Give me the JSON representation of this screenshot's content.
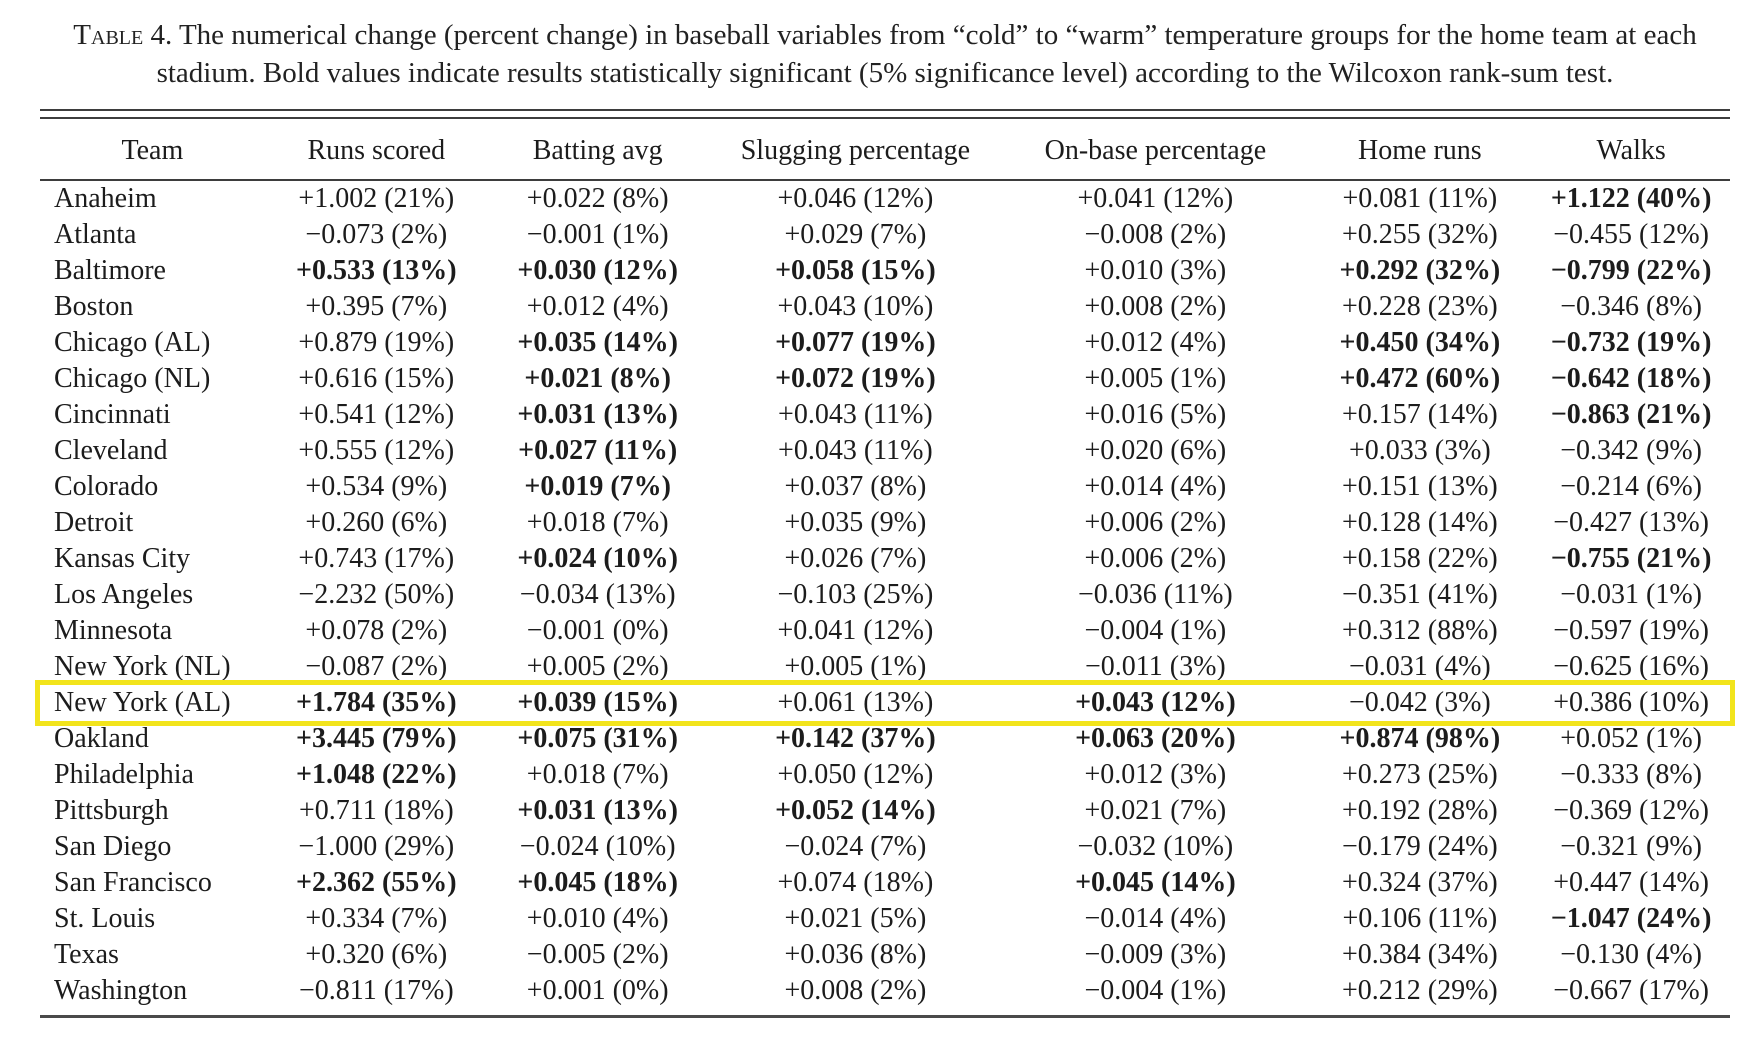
{
  "caption": {
    "label": "Table 4.",
    "text": "The numerical change (percent change) in baseball variables from “cold” to “warm” temperature groups for the home team at each stadium. Bold values indicate results statistically significant (5% significance level) according to the Wilcoxon rank-sum test."
  },
  "highlight": {
    "color": "#f2e41c",
    "row": "New York (AL)"
  },
  "table": {
    "columns": [
      "Team",
      "Runs scored",
      "Batting avg",
      "Slugging percentage",
      "On-base percentage",
      "Home runs",
      "Walks"
    ],
    "rows": [
      {
        "team": "Anaheim",
        "highlighted": false,
        "cells": [
          {
            "text": "+1.002 (21%)",
            "bold": false
          },
          {
            "text": "+0.022 (8%)",
            "bold": false
          },
          {
            "text": "+0.046 (12%)",
            "bold": false
          },
          {
            "text": "+0.041 (12%)",
            "bold": false
          },
          {
            "text": "+0.081 (11%)",
            "bold": false
          },
          {
            "text": "+1.122 (40%)",
            "bold": true
          }
        ]
      },
      {
        "team": "Atlanta",
        "highlighted": false,
        "cells": [
          {
            "text": "−0.073 (2%)",
            "bold": false
          },
          {
            "text": "−0.001 (1%)",
            "bold": false
          },
          {
            "text": "+0.029 (7%)",
            "bold": false
          },
          {
            "text": "−0.008 (2%)",
            "bold": false
          },
          {
            "text": "+0.255 (32%)",
            "bold": false
          },
          {
            "text": "−0.455 (12%)",
            "bold": false
          }
        ]
      },
      {
        "team": "Baltimore",
        "highlighted": false,
        "cells": [
          {
            "text": "+0.533 (13%)",
            "bold": true
          },
          {
            "text": "+0.030 (12%)",
            "bold": true
          },
          {
            "text": "+0.058 (15%)",
            "bold": true
          },
          {
            "text": "+0.010 (3%)",
            "bold": false
          },
          {
            "text": "+0.292 (32%)",
            "bold": true
          },
          {
            "text": "−0.799 (22%)",
            "bold": true
          }
        ]
      },
      {
        "team": "Boston",
        "highlighted": false,
        "cells": [
          {
            "text": "+0.395 (7%)",
            "bold": false
          },
          {
            "text": "+0.012 (4%)",
            "bold": false
          },
          {
            "text": "+0.043 (10%)",
            "bold": false
          },
          {
            "text": "+0.008 (2%)",
            "bold": false
          },
          {
            "text": "+0.228 (23%)",
            "bold": false
          },
          {
            "text": "−0.346 (8%)",
            "bold": false
          }
        ]
      },
      {
        "team": "Chicago (AL)",
        "highlighted": false,
        "cells": [
          {
            "text": "+0.879 (19%)",
            "bold": false
          },
          {
            "text": "+0.035 (14%)",
            "bold": true
          },
          {
            "text": "+0.077 (19%)",
            "bold": true
          },
          {
            "text": "+0.012 (4%)",
            "bold": false
          },
          {
            "text": "+0.450 (34%)",
            "bold": true
          },
          {
            "text": "−0.732 (19%)",
            "bold": true
          }
        ]
      },
      {
        "team": "Chicago (NL)",
        "highlighted": false,
        "cells": [
          {
            "text": "+0.616 (15%)",
            "bold": false
          },
          {
            "text": "+0.021 (8%)",
            "bold": true
          },
          {
            "text": "+0.072 (19%)",
            "bold": true
          },
          {
            "text": "+0.005 (1%)",
            "bold": false
          },
          {
            "text": "+0.472 (60%)",
            "bold": true
          },
          {
            "text": "−0.642 (18%)",
            "bold": true
          }
        ]
      },
      {
        "team": "Cincinnati",
        "highlighted": false,
        "cells": [
          {
            "text": "+0.541 (12%)",
            "bold": false
          },
          {
            "text": "+0.031 (13%)",
            "bold": true
          },
          {
            "text": "+0.043 (11%)",
            "bold": false
          },
          {
            "text": "+0.016 (5%)",
            "bold": false
          },
          {
            "text": "+0.157 (14%)",
            "bold": false
          },
          {
            "text": "−0.863 (21%)",
            "bold": true
          }
        ]
      },
      {
        "team": "Cleveland",
        "highlighted": false,
        "cells": [
          {
            "text": "+0.555 (12%)",
            "bold": false
          },
          {
            "text": "+0.027 (11%)",
            "bold": true
          },
          {
            "text": "+0.043 (11%)",
            "bold": false
          },
          {
            "text": "+0.020 (6%)",
            "bold": false
          },
          {
            "text": "+0.033 (3%)",
            "bold": false
          },
          {
            "text": "−0.342 (9%)",
            "bold": false
          }
        ]
      },
      {
        "team": "Colorado",
        "highlighted": false,
        "cells": [
          {
            "text": "+0.534 (9%)",
            "bold": false
          },
          {
            "text": "+0.019 (7%)",
            "bold": true
          },
          {
            "text": "+0.037 (8%)",
            "bold": false
          },
          {
            "text": "+0.014 (4%)",
            "bold": false
          },
          {
            "text": "+0.151 (13%)",
            "bold": false
          },
          {
            "text": "−0.214 (6%)",
            "bold": false
          }
        ]
      },
      {
        "team": "Detroit",
        "highlighted": false,
        "cells": [
          {
            "text": "+0.260 (6%)",
            "bold": false
          },
          {
            "text": "+0.018 (7%)",
            "bold": false
          },
          {
            "text": "+0.035 (9%)",
            "bold": false
          },
          {
            "text": "+0.006 (2%)",
            "bold": false
          },
          {
            "text": "+0.128 (14%)",
            "bold": false
          },
          {
            "text": "−0.427 (13%)",
            "bold": false
          }
        ]
      },
      {
        "team": "Kansas City",
        "highlighted": false,
        "cells": [
          {
            "text": "+0.743 (17%)",
            "bold": false
          },
          {
            "text": "+0.024 (10%)",
            "bold": true
          },
          {
            "text": "+0.026 (7%)",
            "bold": false
          },
          {
            "text": "+0.006 (2%)",
            "bold": false
          },
          {
            "text": "+0.158 (22%)",
            "bold": false
          },
          {
            "text": "−0.755 (21%)",
            "bold": true
          }
        ]
      },
      {
        "team": "Los Angeles",
        "highlighted": false,
        "cells": [
          {
            "text": "−2.232 (50%)",
            "bold": false
          },
          {
            "text": "−0.034 (13%)",
            "bold": false
          },
          {
            "text": "−0.103 (25%)",
            "bold": false
          },
          {
            "text": "−0.036 (11%)",
            "bold": false
          },
          {
            "text": "−0.351 (41%)",
            "bold": false
          },
          {
            "text": "−0.031 (1%)",
            "bold": false
          }
        ]
      },
      {
        "team": "Minnesota",
        "highlighted": false,
        "cells": [
          {
            "text": "+0.078 (2%)",
            "bold": false
          },
          {
            "text": "−0.001 (0%)",
            "bold": false
          },
          {
            "text": "+0.041 (12%)",
            "bold": false
          },
          {
            "text": "−0.004 (1%)",
            "bold": false
          },
          {
            "text": "+0.312 (88%)",
            "bold": false
          },
          {
            "text": "−0.597 (19%)",
            "bold": false
          }
        ]
      },
      {
        "team": "New York (NL)",
        "highlighted": false,
        "cells": [
          {
            "text": "−0.087 (2%)",
            "bold": false
          },
          {
            "text": "+0.005 (2%)",
            "bold": false
          },
          {
            "text": "+0.005 (1%)",
            "bold": false
          },
          {
            "text": "−0.011 (3%)",
            "bold": false
          },
          {
            "text": "−0.031 (4%)",
            "bold": false
          },
          {
            "text": "−0.625 (16%)",
            "bold": false
          }
        ]
      },
      {
        "team": "New York (AL)",
        "highlighted": true,
        "cells": [
          {
            "text": "+1.784 (35%)",
            "bold": true
          },
          {
            "text": "+0.039 (15%)",
            "bold": true
          },
          {
            "text": "+0.061 (13%)",
            "bold": false
          },
          {
            "text": "+0.043 (12%)",
            "bold": true
          },
          {
            "text": "−0.042 (3%)",
            "bold": false
          },
          {
            "text": "+0.386 (10%)",
            "bold": false
          }
        ]
      },
      {
        "team": "Oakland",
        "highlighted": false,
        "cells": [
          {
            "text": "+3.445 (79%)",
            "bold": true
          },
          {
            "text": "+0.075 (31%)",
            "bold": true
          },
          {
            "text": "+0.142 (37%)",
            "bold": true
          },
          {
            "text": "+0.063 (20%)",
            "bold": true
          },
          {
            "text": "+0.874 (98%)",
            "bold": true
          },
          {
            "text": "+0.052 (1%)",
            "bold": false
          }
        ]
      },
      {
        "team": "Philadelphia",
        "highlighted": false,
        "cells": [
          {
            "text": "+1.048 (22%)",
            "bold": true
          },
          {
            "text": "+0.018 (7%)",
            "bold": false
          },
          {
            "text": "+0.050 (12%)",
            "bold": false
          },
          {
            "text": "+0.012 (3%)",
            "bold": false
          },
          {
            "text": "+0.273 (25%)",
            "bold": false
          },
          {
            "text": "−0.333 (8%)",
            "bold": false
          }
        ]
      },
      {
        "team": "Pittsburgh",
        "highlighted": false,
        "cells": [
          {
            "text": "+0.711 (18%)",
            "bold": false
          },
          {
            "text": "+0.031 (13%)",
            "bold": true
          },
          {
            "text": "+0.052 (14%)",
            "bold": true
          },
          {
            "text": "+0.021 (7%)",
            "bold": false
          },
          {
            "text": "+0.192 (28%)",
            "bold": false
          },
          {
            "text": "−0.369 (12%)",
            "bold": false
          }
        ]
      },
      {
        "team": "San Diego",
        "highlighted": false,
        "cells": [
          {
            "text": "−1.000 (29%)",
            "bold": false
          },
          {
            "text": "−0.024 (10%)",
            "bold": false
          },
          {
            "text": "−0.024 (7%)",
            "bold": false
          },
          {
            "text": "−0.032 (10%)",
            "bold": false
          },
          {
            "text": "−0.179 (24%)",
            "bold": false
          },
          {
            "text": "−0.321 (9%)",
            "bold": false
          }
        ]
      },
      {
        "team": "San Francisco",
        "highlighted": false,
        "cells": [
          {
            "text": "+2.362 (55%)",
            "bold": true
          },
          {
            "text": "+0.045 (18%)",
            "bold": true
          },
          {
            "text": "+0.074 (18%)",
            "bold": false
          },
          {
            "text": "+0.045 (14%)",
            "bold": true
          },
          {
            "text": "+0.324 (37%)",
            "bold": false
          },
          {
            "text": "+0.447 (14%)",
            "bold": false
          }
        ]
      },
      {
        "team": "St. Louis",
        "highlighted": false,
        "cells": [
          {
            "text": "+0.334 (7%)",
            "bold": false
          },
          {
            "text": "+0.010 (4%)",
            "bold": false
          },
          {
            "text": "+0.021 (5%)",
            "bold": false
          },
          {
            "text": "−0.014 (4%)",
            "bold": false
          },
          {
            "text": "+0.106 (11%)",
            "bold": false
          },
          {
            "text": "−1.047 (24%)",
            "bold": true
          }
        ]
      },
      {
        "team": "Texas",
        "highlighted": false,
        "cells": [
          {
            "text": "+0.320 (6%)",
            "bold": false
          },
          {
            "text": "−0.005 (2%)",
            "bold": false
          },
          {
            "text": "+0.036 (8%)",
            "bold": false
          },
          {
            "text": "−0.009 (3%)",
            "bold": false
          },
          {
            "text": "+0.384 (34%)",
            "bold": false
          },
          {
            "text": "−0.130 (4%)",
            "bold": false
          }
        ]
      },
      {
        "team": "Washington",
        "highlighted": false,
        "cells": [
          {
            "text": "−0.811 (17%)",
            "bold": false
          },
          {
            "text": "+0.001 (0%)",
            "bold": false
          },
          {
            "text": "+0.008 (2%)",
            "bold": false
          },
          {
            "text": "−0.004 (1%)",
            "bold": false
          },
          {
            "text": "+0.212 (29%)",
            "bold": false
          },
          {
            "text": "−0.667 (17%)",
            "bold": false
          }
        ]
      }
    ]
  }
}
